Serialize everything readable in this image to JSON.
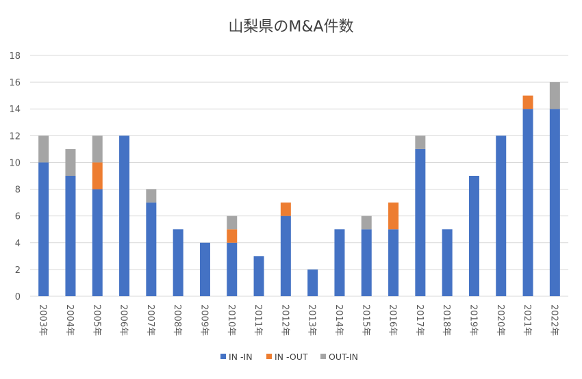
{
  "chart_data": {
    "type": "bar",
    "stacked": true,
    "title": "山梨県のM&A件数",
    "xlabel": "",
    "ylabel": "",
    "categories": [
      "2003年",
      "2004年",
      "2005年",
      "2006年",
      "2007年",
      "2008年",
      "2009年",
      "2010年",
      "2011年",
      "2012年",
      "2013年",
      "2014年",
      "2015年",
      "2016年",
      "2017年",
      "2018年",
      "2019年",
      "2020年",
      "2021年",
      "2022年"
    ],
    "series": [
      {
        "name": "IN -IN",
        "color": "#4472c4",
        "values": [
          10,
          9,
          8,
          12,
          7,
          5,
          4,
          4,
          3,
          6,
          2,
          5,
          5,
          5,
          11,
          5,
          9,
          12,
          14,
          14
        ]
      },
      {
        "name": "IN -OUT",
        "color": "#ed7d31",
        "values": [
          0,
          0,
          2,
          0,
          0,
          0,
          0,
          1,
          0,
          1,
          0,
          0,
          0,
          2,
          0,
          0,
          0,
          0,
          1,
          0
        ]
      },
      {
        "name": "OUT-IN",
        "color": "#a5a5a5",
        "values": [
          2,
          2,
          2,
          0,
          1,
          0,
          0,
          1,
          0,
          0,
          0,
          0,
          1,
          0,
          1,
          0,
          0,
          0,
          0,
          2
        ]
      }
    ],
    "ylim": [
      0,
      18
    ],
    "yticks": [
      "0",
      "2",
      "4",
      "6",
      "8",
      "10",
      "12",
      "14",
      "16",
      "18"
    ],
    "grid": true,
    "legend_position": "bottom"
  }
}
